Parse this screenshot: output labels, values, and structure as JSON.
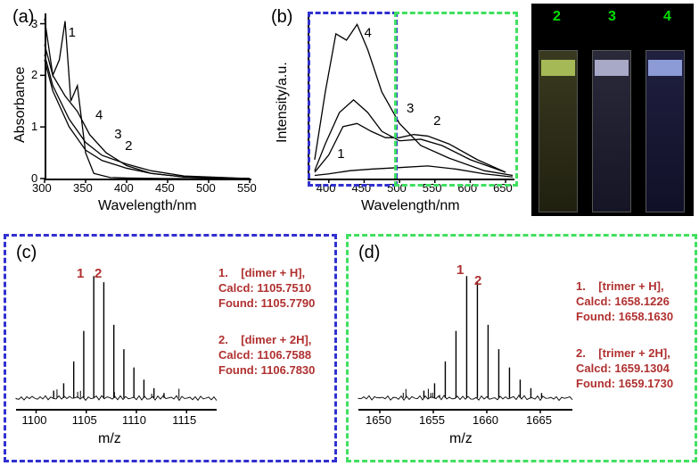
{
  "panel_a": {
    "label": "(a)",
    "x_axis": "Wavelength/nm",
    "y_axis": "Absorbance",
    "x_ticks": [
      "300",
      "350",
      "400",
      "450",
      "500",
      "550"
    ],
    "y_ticks": [
      "0",
      "1",
      "2",
      "3"
    ],
    "curve_labels": [
      "1",
      "2",
      "3",
      "4"
    ],
    "x_range": [
      300,
      550
    ],
    "y_range": [
      0,
      3.2
    ],
    "curves": {
      "1": [
        [
          300,
          3.1
        ],
        [
          310,
          2.0
        ],
        [
          318,
          2.3
        ],
        [
          325,
          3.05
        ],
        [
          332,
          1.5
        ],
        [
          340,
          1.8
        ],
        [
          350,
          0.5
        ],
        [
          360,
          0.1
        ],
        [
          380,
          0.02
        ],
        [
          400,
          0.01
        ],
        [
          450,
          0.0
        ],
        [
          550,
          0.0
        ]
      ],
      "2": [
        [
          300,
          2.3
        ],
        [
          310,
          1.7
        ],
        [
          330,
          1.0
        ],
        [
          350,
          0.55
        ],
        [
          370,
          0.35
        ],
        [
          400,
          0.2
        ],
        [
          430,
          0.1
        ],
        [
          470,
          0.03
        ],
        [
          550,
          0.0
        ]
      ],
      "3": [
        [
          300,
          2.4
        ],
        [
          310,
          1.8
        ],
        [
          330,
          1.15
        ],
        [
          350,
          0.7
        ],
        [
          370,
          0.45
        ],
        [
          400,
          0.28
        ],
        [
          430,
          0.15
        ],
        [
          470,
          0.05
        ],
        [
          550,
          0.0
        ]
      ],
      "4": [
        [
          300,
          2.6
        ],
        [
          310,
          2.0
        ],
        [
          325,
          1.6
        ],
        [
          340,
          1.3
        ],
        [
          355,
          0.85
        ],
        [
          375,
          0.5
        ],
        [
          400,
          0.25
        ],
        [
          430,
          0.1
        ],
        [
          470,
          0.03
        ],
        [
          550,
          0.0
        ]
      ]
    },
    "label_positions": {
      "1": [
        329,
        2.75
      ],
      "2": [
        398,
        0.55
      ],
      "3": [
        385,
        0.78
      ],
      "4": [
        362,
        1.15
      ]
    },
    "line_color": "#000000",
    "background": "#ffffff"
  },
  "panel_b": {
    "label": "(b)",
    "x_axis": "Wavelength/nm",
    "y_axis": "Intensity/a.u.",
    "x_ticks": [
      "400",
      "450",
      "500",
      "550",
      "600",
      "650"
    ],
    "curve_labels": [
      "1",
      "2",
      "3",
      "4"
    ],
    "x_range": [
      370,
      660
    ],
    "y_range": [
      0,
      1.05
    ],
    "curves": {
      "1": [
        [
          380,
          0.02
        ],
        [
          400,
          0.03
        ],
        [
          430,
          0.05
        ],
        [
          460,
          0.06
        ],
        [
          500,
          0.07
        ],
        [
          540,
          0.08
        ],
        [
          580,
          0.06
        ],
        [
          620,
          0.03
        ],
        [
          660,
          0.01
        ]
      ],
      "2": [
        [
          380,
          0.04
        ],
        [
          400,
          0.15
        ],
        [
          420,
          0.33
        ],
        [
          440,
          0.35
        ],
        [
          460,
          0.3
        ],
        [
          480,
          0.26
        ],
        [
          500,
          0.26
        ],
        [
          520,
          0.28
        ],
        [
          540,
          0.27
        ],
        [
          570,
          0.22
        ],
        [
          610,
          0.12
        ],
        [
          650,
          0.04
        ]
      ],
      "3": [
        [
          380,
          0.05
        ],
        [
          395,
          0.22
        ],
        [
          415,
          0.42
        ],
        [
          435,
          0.5
        ],
        [
          455,
          0.42
        ],
        [
          475,
          0.3
        ],
        [
          500,
          0.24
        ],
        [
          530,
          0.25
        ],
        [
          560,
          0.21
        ],
        [
          600,
          0.12
        ],
        [
          650,
          0.04
        ]
      ],
      "4": [
        [
          380,
          0.12
        ],
        [
          395,
          0.55
        ],
        [
          410,
          0.92
        ],
        [
          425,
          0.88
        ],
        [
          440,
          0.98
        ],
        [
          455,
          0.82
        ],
        [
          475,
          0.55
        ],
        [
          500,
          0.35
        ],
        [
          530,
          0.21
        ],
        [
          570,
          0.13
        ],
        [
          620,
          0.05
        ],
        [
          660,
          0.02
        ]
      ]
    },
    "label_positions": {
      "1": [
        412,
        0.13
      ],
      "2": [
        548,
        0.34
      ],
      "3": [
        510,
        0.42
      ],
      "4": [
        450,
        0.9
      ]
    },
    "line_color": "#000000",
    "dashed_blue": "#3030d0",
    "dashed_green": "#40e060"
  },
  "cuvettes": {
    "labels": [
      "2",
      "3",
      "4"
    ],
    "background": "#000000",
    "colors": [
      "#a0c060",
      "#9090c0",
      "#6070c0"
    ]
  },
  "panel_c": {
    "label": "(c)",
    "x_axis": "m/z",
    "x_ticks": [
      "1100",
      "1105",
      "1110",
      "1115"
    ],
    "peak_labels": [
      "1",
      "2"
    ],
    "text1": "1.    [dimer + H],\nCalcd: 1105.7510\nFound: 1105.7790",
    "text2": "2.    [dimer + 2H],\nCalcd: 1106.7588\nFound: 1106.7830",
    "border_color": "#3030d0"
  },
  "panel_d": {
    "label": "(d)",
    "x_axis": "m/z",
    "x_ticks": [
      "1650",
      "1655",
      "1660",
      "1665"
    ],
    "peak_labels": [
      "1",
      "2"
    ],
    "text1": "1.    [trimer + H],\nCalcd: 1658.1226\nFound: 1658.1630",
    "text2": "2.    [trimer + 2H],\nCalcd: 1659.1304\nFound: 1659.1730",
    "border_color": "#40e060"
  }
}
